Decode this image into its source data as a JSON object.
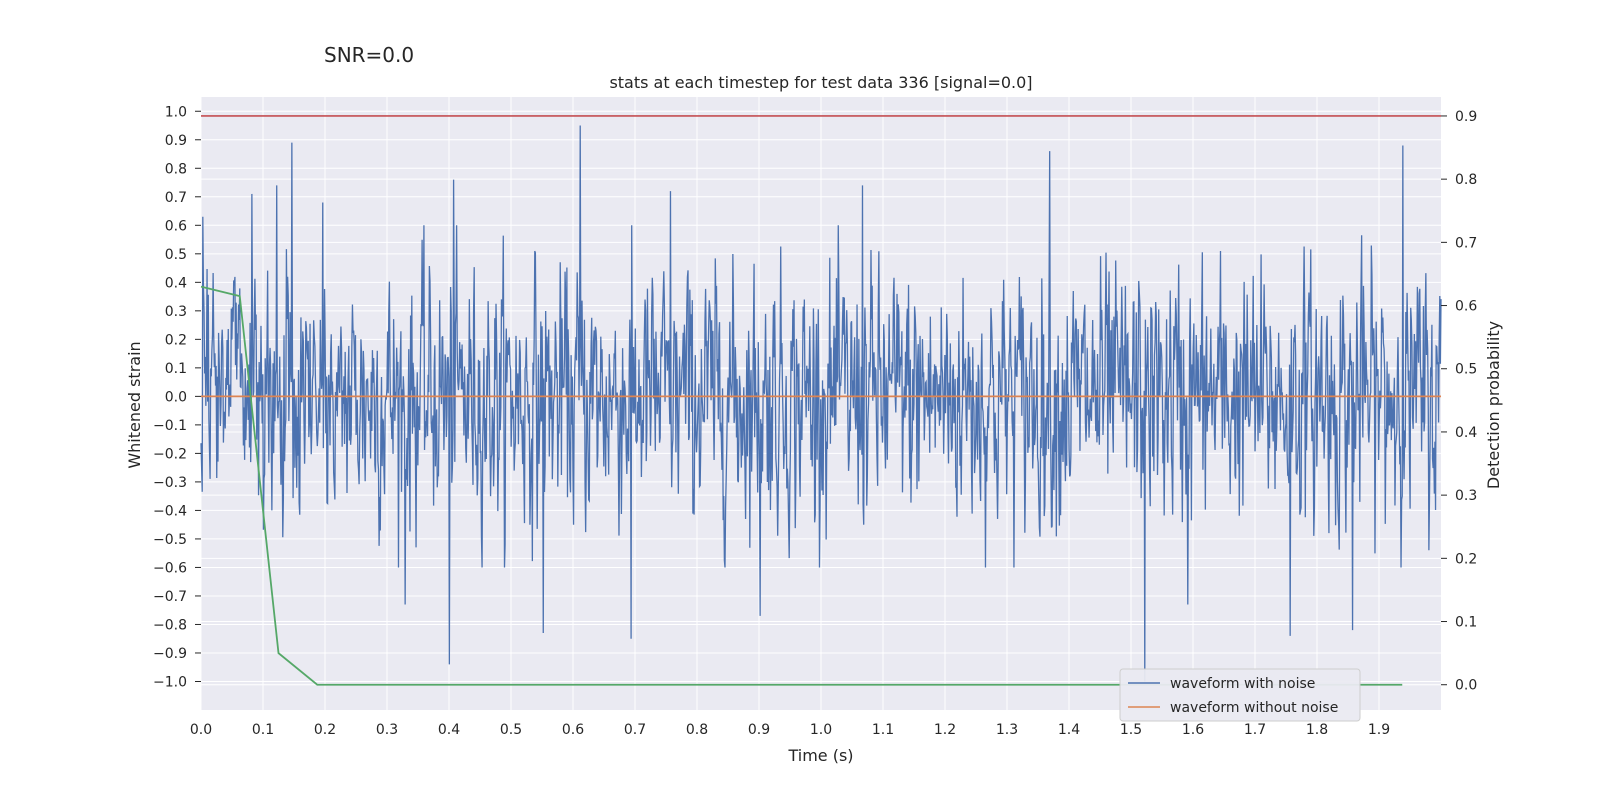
{
  "figure": {
    "suptitle": "SNR=0.0",
    "title": "stats at each timestep for test data 336 [signal=0.0]"
  },
  "chart_data": {
    "type": "line",
    "title": "stats at each timestep for test data 336 [signal=0.0]",
    "xlabel": "Time (s)",
    "ylabel": "Whitened strain",
    "y2label": "Detection probability",
    "xlim": [
      0.0,
      2.0
    ],
    "ylim": [
      -1.1,
      1.05
    ],
    "y2lim": [
      -0.04,
      0.93
    ],
    "x_ticks": [
      0.0,
      0.1,
      0.2,
      0.3,
      0.4,
      0.5,
      0.6,
      0.7,
      0.8,
      0.9,
      1.0,
      1.1,
      1.2,
      1.3,
      1.4,
      1.5,
      1.6,
      1.7,
      1.8,
      1.9
    ],
    "y_ticks": [
      1.0,
      0.9,
      0.8,
      0.7,
      0.6,
      0.5,
      0.4,
      0.3,
      0.2,
      0.1,
      0.0,
      -0.1,
      -0.2,
      -0.3,
      -0.4,
      -0.5,
      -0.6,
      -0.7,
      -0.8,
      -0.9,
      -1.0
    ],
    "y2_ticks": [
      0.9,
      0.8,
      0.7,
      0.6,
      0.5,
      0.4,
      0.3,
      0.2,
      0.1,
      0.0
    ],
    "grid": true,
    "legend_position": "lower right",
    "series": [
      {
        "name": "waveform with noise",
        "color": "#4c72b0",
        "axis": "left",
        "noise_std": 0.2,
        "n_samples": 2048,
        "peaks": [
          {
            "x": 0.003,
            "y": 0.63
          },
          {
            "x": 0.082,
            "y": 0.71
          },
          {
            "x": 0.122,
            "y": 0.74
          },
          {
            "x": 0.147,
            "y": 0.89
          },
          {
            "x": 0.196,
            "y": 0.68
          },
          {
            "x": 0.407,
            "y": 0.76
          },
          {
            "x": 0.612,
            "y": 0.95
          },
          {
            "x": 0.757,
            "y": 0.72
          },
          {
            "x": 1.067,
            "y": 0.74
          },
          {
            "x": 1.369,
            "y": 0.86
          },
          {
            "x": 1.938,
            "y": 0.88
          },
          {
            "x": 0.401,
            "y": -0.94
          },
          {
            "x": 0.329,
            "y": -0.73
          },
          {
            "x": 0.552,
            "y": -0.83
          },
          {
            "x": 0.694,
            "y": -0.85
          },
          {
            "x": 0.902,
            "y": -0.77
          },
          {
            "x": 1.522,
            "y": -1.0
          },
          {
            "x": 1.757,
            "y": -0.84
          },
          {
            "x": 1.857,
            "y": -0.82
          },
          {
            "x": 1.592,
            "y": -0.73
          }
        ]
      },
      {
        "name": "waveform without noise",
        "color": "#dd8452",
        "axis": "left",
        "x": [
          0.0,
          2.0
        ],
        "y": [
          0.0,
          0.0
        ]
      },
      {
        "color": "#55a868",
        "axis": "right",
        "x": [
          0.0,
          0.0625,
          0.125,
          0.1875,
          0.25,
          0.5,
          1.0,
          1.5,
          1.9375
        ],
        "y": [
          0.63,
          0.615,
          0.05,
          0.0,
          0.0,
          0.0,
          0.0,
          0.0,
          0.0
        ]
      },
      {
        "color": "#c44e52",
        "axis": "right",
        "x": [
          0.0,
          2.0
        ],
        "y": [
          0.9,
          0.9
        ]
      }
    ]
  }
}
